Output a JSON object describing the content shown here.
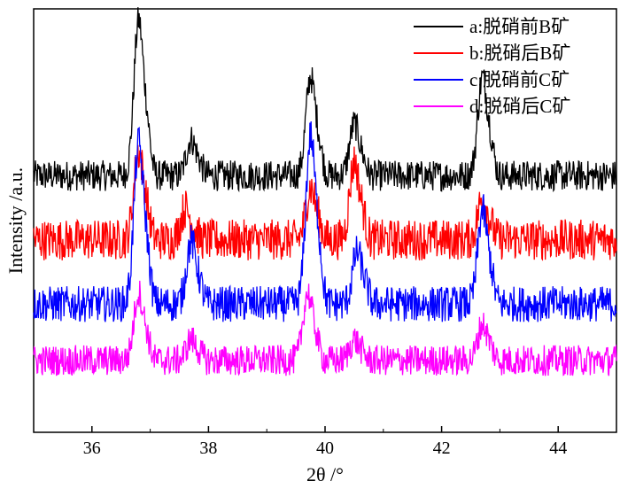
{
  "chart_data": {
    "type": "line",
    "xlabel": "2θ /°",
    "ylabel": "Intensity /a.u.",
    "xlim": [
      35,
      45
    ],
    "x_ticks": [
      "36",
      "38",
      "40",
      "42",
      "44"
    ],
    "y_ticks_labeled": false,
    "grid": false,
    "legend_position": "top-right",
    "series": [
      {
        "name": "a:脱硝前B矿",
        "color": "#000000",
        "baseline": 80,
        "peaks": [
          [
            36.8,
            60
          ],
          [
            37.7,
            14
          ],
          [
            39.75,
            38
          ],
          [
            40.5,
            20
          ],
          [
            42.7,
            38
          ]
        ],
        "noise": 12
      },
      {
        "name": "b:脱硝后B矿",
        "color": "#ff0000",
        "baseline": 55,
        "peaks": [
          [
            36.8,
            34
          ],
          [
            37.6,
            12
          ],
          [
            39.75,
            20
          ],
          [
            40.5,
            30
          ],
          [
            42.7,
            16
          ]
        ],
        "noise": 16
      },
      {
        "name": "c:脱硝前C矿",
        "color": "#0000ff",
        "baseline": 30,
        "peaks": [
          [
            36.8,
            62
          ],
          [
            37.7,
            24
          ],
          [
            39.75,
            65
          ],
          [
            40.55,
            20
          ],
          [
            42.7,
            36
          ]
        ],
        "noise": 14
      },
      {
        "name": "d:脱硝后C矿",
        "color": "#ff00ff",
        "baseline": 8,
        "peaks": [
          [
            36.8,
            26
          ],
          [
            37.7,
            8
          ],
          [
            39.7,
            26
          ],
          [
            40.5,
            8
          ],
          [
            42.7,
            14
          ]
        ],
        "noise": 12
      }
    ]
  }
}
